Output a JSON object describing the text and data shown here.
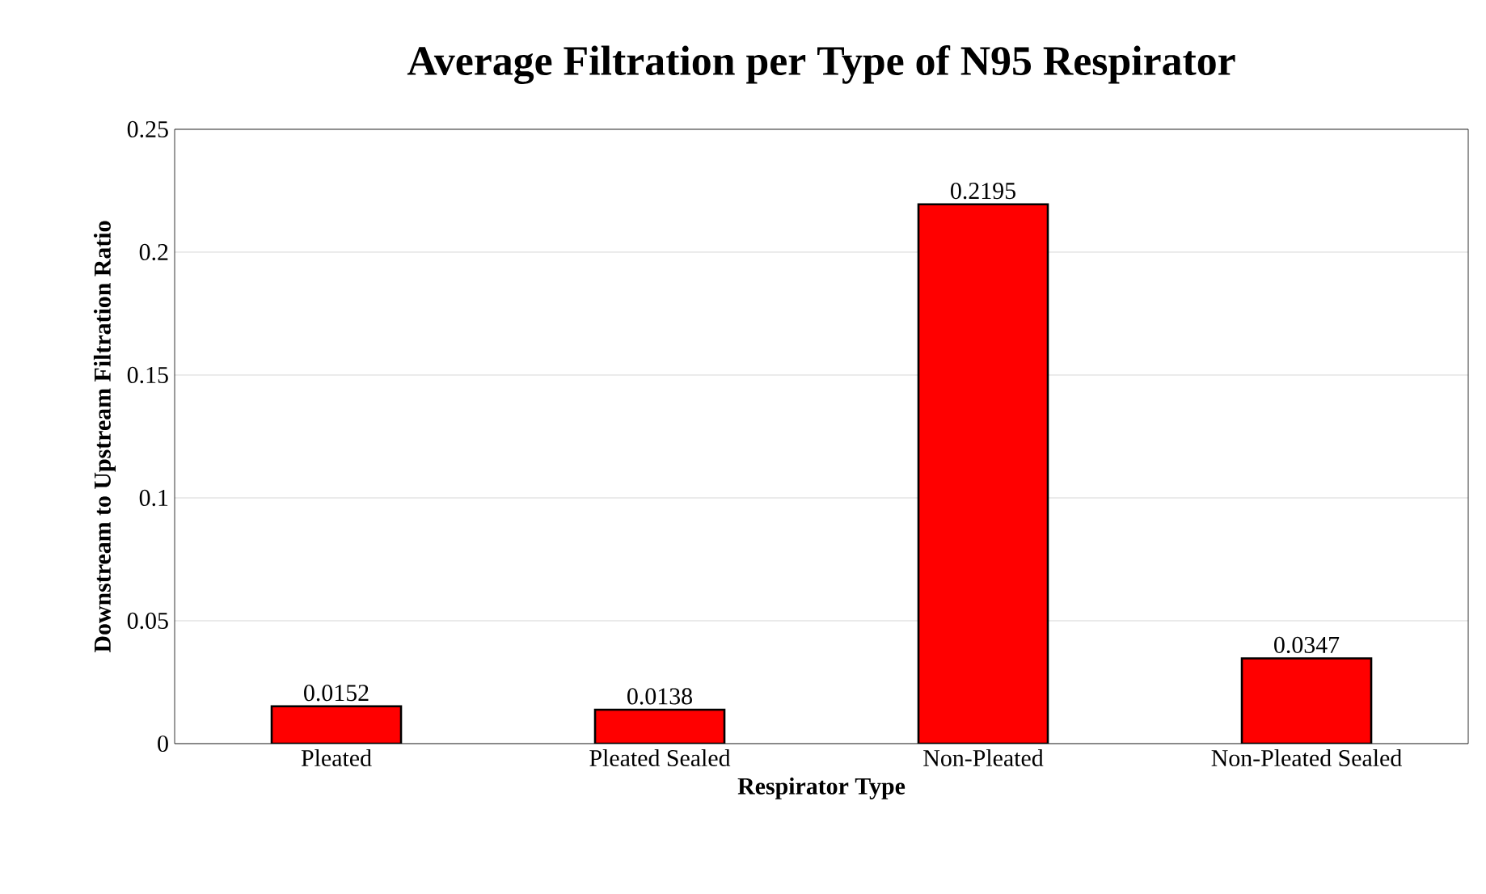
{
  "chart_data": {
    "type": "bar",
    "title": "Average Filtration per Type of N95 Respirator",
    "xlabel": "Respirator Type",
    "ylabel": "Downstream to Upstream Filtration Ratio",
    "categories": [
      "Pleated",
      "Pleated Sealed",
      "Non-Pleated",
      "Non-Pleated Sealed"
    ],
    "values": [
      0.0152,
      0.0138,
      0.2195,
      0.0347
    ],
    "color": "#ff0000",
    "ylim": [
      0,
      0.25
    ],
    "yticks": [
      0,
      0.05,
      0.1,
      0.15,
      0.2,
      0.25
    ],
    "grid": "y",
    "data_labels": true
  }
}
